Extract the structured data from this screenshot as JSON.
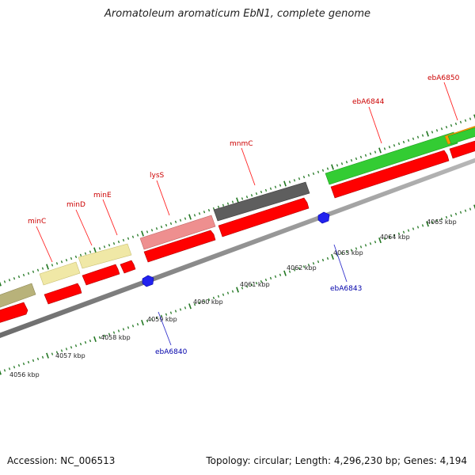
{
  "title": "Aromatoleum aromaticum EbN1, complete genome",
  "footer": {
    "accession": "Accession: NC_006513",
    "summary": "Topology: circular; Length: 4,296,230 bp; Genes: 4,194"
  },
  "colors": {
    "forward_label": "#cc0000",
    "reverse_label": "#0000aa",
    "cds": "#ff0000",
    "tick": "#227722",
    "backbone": "#808080"
  },
  "kbp_labels": [
    "4056 kbp",
    "4057 kbp",
    "4058 kbp",
    "4059 kbp",
    "4060 kbp",
    "4061 kbp",
    "4062 kbp",
    "4063 kbp",
    "4064 kbp",
    "4065 kbp"
  ],
  "forward_genes": [
    "minC",
    "minD",
    "minE",
    "lysS",
    "mnmC",
    "ebA6844",
    "ebA6850"
  ],
  "reverse_genes": [
    "ebA6840",
    "ebA6843"
  ]
}
